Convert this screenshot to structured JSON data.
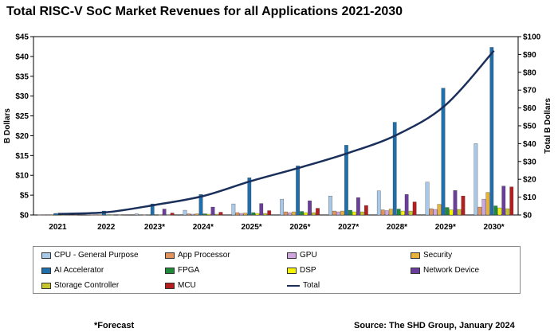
{
  "chart_data": {
    "type": "bar",
    "title": "Total RISC-V SoC Market Revenues for all Applications 2021-2030",
    "ylabel": "B Dollars",
    "y2label": "Total B Dollars",
    "ylim": [
      0,
      45
    ],
    "y2lim": [
      0,
      100
    ],
    "yticks": [
      "$0",
      "$5",
      "$10",
      "$15",
      "$20",
      "$25",
      "$30",
      "$35",
      "$40",
      "$45"
    ],
    "y2ticks": [
      "$0",
      "$10",
      "$20",
      "$30",
      "$40",
      "$50",
      "$60",
      "$70",
      "$80",
      "$90",
      "$100"
    ],
    "categories": [
      "2021",
      "2022",
      "2023*",
      "2024*",
      "2025*",
      "2026*",
      "2027*",
      "2028*",
      "2029*",
      "2030*"
    ],
    "legend_position": "bottom",
    "grid": false,
    "series": [
      {
        "name": "CPU - General Purpose",
        "color": "#a9c9e8",
        "values": [
          0.05,
          0.1,
          0.3,
          1.2,
          2.8,
          4.0,
          4.8,
          6.1,
          8.3,
          18.0
        ]
      },
      {
        "name": "App Processor",
        "color": "#e3935c",
        "values": [
          0.02,
          0.05,
          0.1,
          0.3,
          0.6,
          0.8,
          1.0,
          1.3,
          1.6,
          2.0
        ]
      },
      {
        "name": "GPU",
        "color": "#cfa6e0",
        "values": [
          0.01,
          0.02,
          0.05,
          0.2,
          0.4,
          0.6,
          0.8,
          1.1,
          1.4,
          4.0
        ]
      },
      {
        "name": "Security",
        "color": "#e8b33c",
        "values": [
          0.02,
          0.05,
          0.1,
          0.3,
          0.5,
          0.8,
          1.0,
          1.5,
          2.7,
          5.7
        ]
      },
      {
        "name": "AI Accelerator",
        "color": "#1f6fad",
        "values": [
          0.4,
          1.0,
          2.8,
          5.2,
          9.4,
          12.4,
          17.6,
          23.4,
          32.0,
          42.3
        ]
      },
      {
        "name": "FPGA",
        "color": "#1e8a3a",
        "values": [
          0.01,
          0.03,
          0.1,
          0.3,
          0.6,
          0.9,
          1.2,
          1.5,
          1.9,
          2.3
        ]
      },
      {
        "name": "DSP",
        "color": "#f5f500",
        "values": [
          0.01,
          0.02,
          0.05,
          0.2,
          0.4,
          0.6,
          0.8,
          1.0,
          1.3,
          1.8
        ]
      },
      {
        "name": "Network Device",
        "color": "#6a3e9a",
        "values": [
          0.05,
          0.1,
          1.5,
          2.0,
          2.9,
          3.6,
          4.4,
          5.2,
          6.2,
          7.3
        ]
      },
      {
        "name": "Storage Controller",
        "color": "#c6c62a",
        "values": [
          0.01,
          0.02,
          0.05,
          0.2,
          0.4,
          0.6,
          0.8,
          1.0,
          1.4,
          1.6
        ]
      },
      {
        "name": "MCU",
        "color": "#b41e1e",
        "values": [
          0.05,
          0.1,
          0.5,
          0.7,
          1.1,
          1.7,
          2.4,
          3.3,
          4.8,
          7.1
        ]
      }
    ],
    "line_series": {
      "name": "Total",
      "color": "#1a2f5a",
      "axis": "right",
      "values": [
        0.6,
        1.5,
        5.6,
        10.6,
        19.1,
        26.6,
        34.8,
        45.0,
        61.6,
        92.1
      ]
    },
    "legend_rows": [
      [
        "CPU - General Purpose",
        "App Processor",
        "GPU",
        "Security"
      ],
      [
        "AI Accelerator",
        "FPGA",
        "DSP",
        "Network Device"
      ],
      [
        "Storage Controller",
        "MCU",
        "Total"
      ]
    ]
  },
  "footnote": "*Forecast",
  "source": "Source: The SHD Group, January 2024"
}
